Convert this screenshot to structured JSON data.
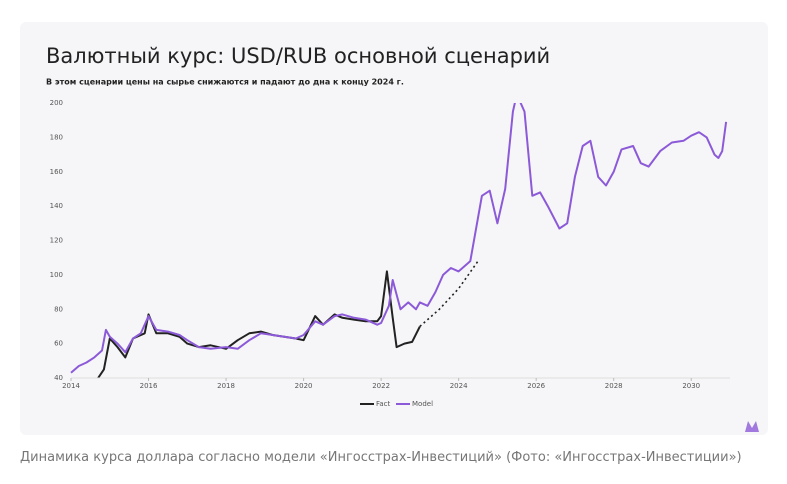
{
  "chart_data": {
    "type": "line",
    "title": "Валютный курс: USD/RUB основной сценарий",
    "subtitle": "В этом сценарии цены на сырье снижаются и падают до дна к концу 2024 г.",
    "caption": "Динамика курса доллара согласно модели «Ингосстрах-Инвестиций» (Фото: «Ингосстрах-Инвестиции»)",
    "xlim": [
      2014,
      2031
    ],
    "xticks": [
      2014,
      2016,
      2018,
      2020,
      2022,
      2024,
      2026,
      2028,
      2030
    ],
    "ylim": [
      40,
      200
    ],
    "yticks": [
      40,
      60,
      80,
      100,
      120,
      140,
      160,
      180,
      200
    ],
    "legend": "bottom",
    "series": [
      {
        "name": "Fact",
        "color": "#222222",
        "x": [
          2014.7,
          2014.85,
          2015.0,
          2015.2,
          2015.4,
          2015.6,
          2015.9,
          2016.0,
          2016.2,
          2016.5,
          2016.8,
          2017.0,
          2017.3,
          2017.6,
          2018.0,
          2018.3,
          2018.6,
          2018.9,
          2019.2,
          2019.5,
          2019.8,
          2020.0,
          2020.3,
          2020.5,
          2020.8,
          2021.0,
          2021.3,
          2021.6,
          2021.9,
          2022.0,
          2022.15,
          2022.3,
          2022.4,
          2022.6,
          2022.8,
          2023.0
        ],
        "values": [
          40,
          45,
          63,
          58,
          52,
          63,
          66,
          77,
          66,
          66,
          64,
          60,
          58,
          59,
          57,
          62,
          66,
          67,
          65,
          64,
          63,
          62,
          76,
          71,
          77,
          75,
          74,
          73,
          73,
          76,
          102,
          75,
          58,
          60,
          61,
          70
        ]
      },
      {
        "name": "Model",
        "color": "#8c5ad8",
        "x": [
          2014.0,
          2014.2,
          2014.4,
          2014.6,
          2014.8,
          2014.9,
          2015.0,
          2015.2,
          2015.4,
          2015.6,
          2015.8,
          2016.0,
          2016.2,
          2016.5,
          2016.8,
          2017.0,
          2017.3,
          2017.6,
          2018.0,
          2018.3,
          2018.6,
          2018.9,
          2019.2,
          2019.5,
          2019.8,
          2020.0,
          2020.3,
          2020.5,
          2020.8,
          2021.0,
          2021.3,
          2021.6,
          2021.9,
          2022.0,
          2022.2,
          2022.3,
          2022.5,
          2022.7,
          2022.9,
          2023.0,
          2023.2,
          2023.4,
          2023.6,
          2023.8,
          2024.0,
          2024.3,
          2024.6,
          2024.8,
          2025.0,
          2025.2,
          2025.4,
          2025.5,
          2025.7,
          2025.9,
          2026.1,
          2026.3,
          2026.6,
          2026.8,
          2027.0,
          2027.2,
          2027.4,
          2027.6,
          2027.8,
          2028.0,
          2028.2,
          2028.5,
          2028.7,
          2028.9,
          2029.2,
          2029.5,
          2029.8,
          2030.0,
          2030.2,
          2030.4,
          2030.6,
          2030.7,
          2030.8,
          2030.9
        ],
        "values": [
          43,
          47,
          49,
          52,
          56,
          68,
          64,
          60,
          55,
          63,
          66,
          76,
          68,
          67,
          65,
          62,
          58,
          57,
          58,
          57,
          62,
          66,
          65,
          64,
          63,
          65,
          73,
          71,
          76,
          77,
          75,
          74,
          71,
          72,
          82,
          97,
          80,
          84,
          80,
          84,
          82,
          90,
          100,
          104,
          102,
          108,
          146,
          149,
          130,
          150,
          195,
          205,
          195,
          146,
          148,
          140,
          127,
          130,
          157,
          175,
          178,
          157,
          152,
          160,
          173,
          175,
          165,
          163,
          172,
          177,
          178,
          181,
          183,
          180,
          170,
          168,
          172,
          189
        ]
      },
      {
        "color": "#222222",
        "style": "dotted",
        "x": [
          2023.0,
          2023.5,
          2024.0,
          2024.5
        ],
        "values": [
          70,
          80,
          92,
          108
        ]
      }
    ]
  }
}
